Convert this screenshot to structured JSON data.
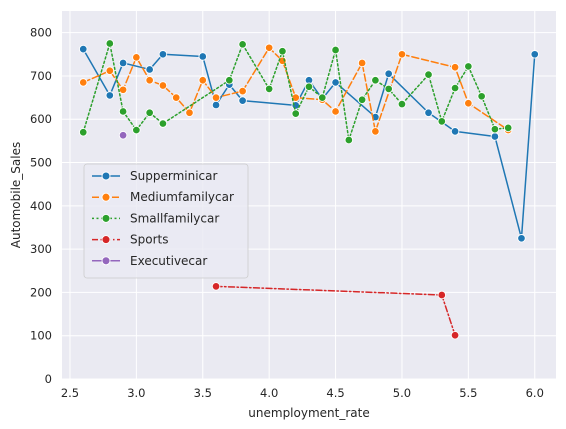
{
  "chart_data": {
    "type": "line",
    "title": "",
    "xlabel": "unemployment_rate",
    "ylabel": "Automobile_Sales",
    "xlim": [
      2.44,
      6.16
    ],
    "ylim": [
      0,
      850
    ],
    "xticks": [
      2.5,
      3.0,
      3.5,
      4.0,
      4.5,
      5.0,
      5.5,
      6.0
    ],
    "xtick_labels": [
      "2.5",
      "3.0",
      "3.5",
      "4.0",
      "4.5",
      "5.0",
      "5.5",
      "6.0"
    ],
    "yticks": [
      0,
      100,
      200,
      300,
      400,
      500,
      600,
      700,
      800
    ],
    "ytick_labels": [
      "0",
      "100",
      "200",
      "300",
      "400",
      "500",
      "600",
      "700",
      "800"
    ],
    "grid": true,
    "legend_position": "center-left",
    "series": [
      {
        "name": "Supperminicar",
        "color": "#1f77b4",
        "dash": "solid",
        "points": [
          [
            2.6,
            762
          ],
          [
            2.8,
            655
          ],
          [
            2.9,
            730
          ],
          [
            3.1,
            715
          ],
          [
            3.2,
            750
          ],
          [
            3.5,
            745
          ],
          [
            3.6,
            633
          ],
          [
            3.7,
            680
          ],
          [
            3.8,
            643
          ],
          [
            4.2,
            632
          ],
          [
            4.3,
            690
          ],
          [
            4.4,
            647
          ],
          [
            4.5,
            685
          ],
          [
            4.8,
            605
          ],
          [
            4.9,
            705
          ],
          [
            5.2,
            615
          ],
          [
            5.4,
            572
          ],
          [
            5.7,
            560
          ],
          [
            5.9,
            325
          ],
          [
            6.0,
            750
          ]
        ]
      },
      {
        "name": "Mediumfamilycar",
        "color": "#ff7f0e",
        "dash": "dashed",
        "points": [
          [
            2.6,
            685
          ],
          [
            2.8,
            712
          ],
          [
            2.9,
            668
          ],
          [
            3.0,
            743
          ],
          [
            3.1,
            690
          ],
          [
            3.2,
            678
          ],
          [
            3.3,
            650
          ],
          [
            3.4,
            615
          ],
          [
            3.5,
            690
          ],
          [
            3.6,
            650
          ],
          [
            3.8,
            665
          ],
          [
            4.0,
            765
          ],
          [
            4.1,
            735
          ],
          [
            4.2,
            650
          ],
          [
            4.4,
            645
          ],
          [
            4.5,
            618
          ],
          [
            4.7,
            730
          ],
          [
            4.8,
            572
          ],
          [
            5.0,
            750
          ],
          [
            5.4,
            720
          ],
          [
            5.5,
            637
          ],
          [
            5.8,
            575
          ]
        ]
      },
      {
        "name": "Smallfamilycar",
        "color": "#2ca02c",
        "dash": "dotted",
        "points": [
          [
            2.6,
            570
          ],
          [
            2.8,
            775
          ],
          [
            2.9,
            618
          ],
          [
            3.0,
            575
          ],
          [
            3.1,
            615
          ],
          [
            3.2,
            590
          ],
          [
            3.7,
            690
          ],
          [
            3.8,
            773
          ],
          [
            4.0,
            670
          ],
          [
            4.1,
            757
          ],
          [
            4.2,
            613
          ],
          [
            4.3,
            675
          ],
          [
            4.4,
            650
          ],
          [
            4.5,
            760
          ],
          [
            4.6,
            552
          ],
          [
            4.7,
            645
          ],
          [
            4.8,
            690
          ],
          [
            4.9,
            670
          ],
          [
            5.0,
            635
          ],
          [
            5.2,
            703
          ],
          [
            5.3,
            595
          ],
          [
            5.4,
            672
          ],
          [
            5.5,
            722
          ],
          [
            5.6,
            653
          ],
          [
            5.7,
            577
          ],
          [
            5.8,
            580
          ]
        ]
      },
      {
        "name": "Sports",
        "color": "#d62728",
        "dash": "dashdot",
        "points": [
          [
            3.6,
            214
          ],
          [
            5.3,
            194
          ],
          [
            5.4,
            101
          ]
        ]
      },
      {
        "name": "Executivecar",
        "color": "#9467bd",
        "dash": "solid",
        "points": [
          [
            2.9,
            563
          ]
        ]
      }
    ]
  }
}
